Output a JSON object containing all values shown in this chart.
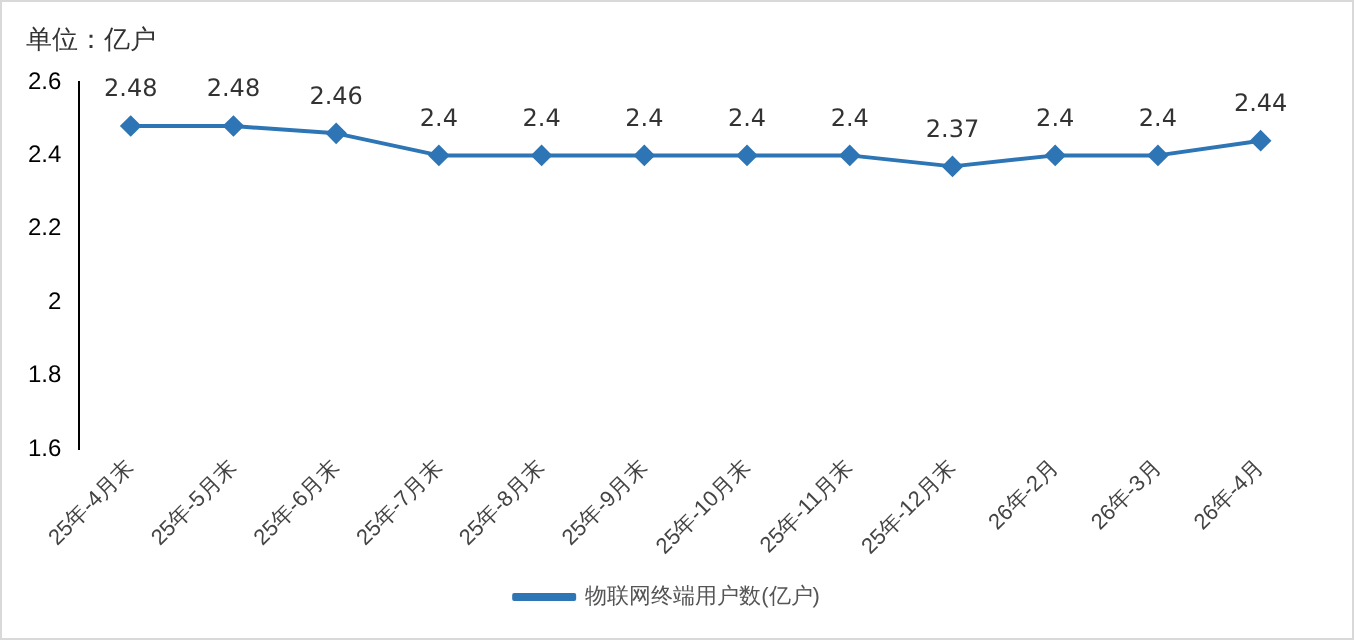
{
  "chart_data": {
    "type": "line",
    "title": "单位：亿户",
    "categories": [
      "25年-4月末",
      "25年-5月末",
      "25年-6月末",
      "25年-7月末",
      "25年-8月末",
      "25年-9月末",
      "25年-10月末",
      "25年-11月末",
      "25年-12月末",
      "26年-2月",
      "26年-3月",
      "26年-4月"
    ],
    "series": [
      {
        "name": "物联网终端用户数(亿户)",
        "color": "#2e75b6",
        "values": [
          2.48,
          2.48,
          2.46,
          2.4,
          2.4,
          2.4,
          2.4,
          2.4,
          2.37,
          2.4,
          2.4,
          2.44
        ]
      }
    ],
    "ylim": [
      1.6,
      2.6
    ],
    "yticks": [
      1.6,
      1.8,
      2,
      2.2,
      2.4,
      2.6
    ],
    "grid": false,
    "legend": "bottom",
    "marker": "diamond",
    "data_labels": true
  }
}
